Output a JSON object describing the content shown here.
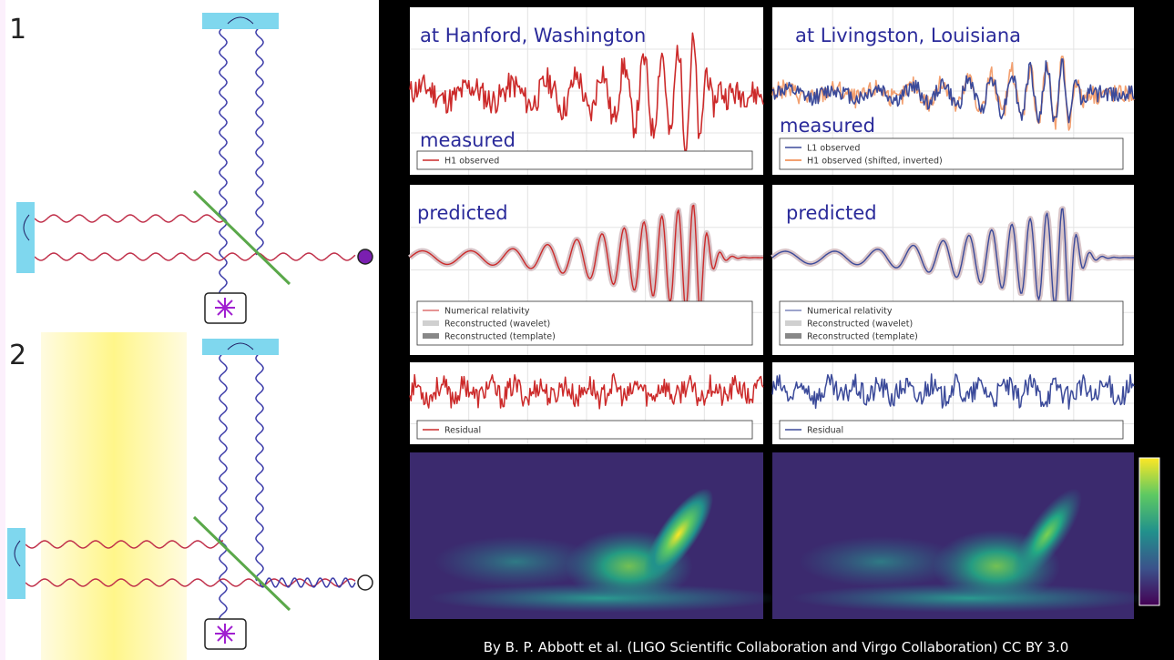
{
  "panel_labels": [
    "1",
    "2"
  ],
  "columns": [
    {
      "title": "at Hanford, Washington",
      "measured_label": "measured",
      "predicted_label": "predicted",
      "measured_legend": [
        "H1 observed"
      ],
      "predicted_legend": [
        "Numerical relativity",
        "Reconstructed (wavelet)",
        "Reconstructed (template)"
      ],
      "residual_legend": [
        "Residual"
      ]
    },
    {
      "title": "at Livingston, Louisiana",
      "measured_label": "measured",
      "predicted_label": "predicted",
      "measured_legend": [
        "L1 observed",
        "H1 observed (shifted, inverted)"
      ],
      "predicted_legend": [
        "Numerical relativity",
        "Reconstructed (wavelet)",
        "Reconstructed (template)"
      ],
      "residual_legend": [
        "Residual"
      ]
    }
  ],
  "credit": "By B. P. Abbott et al. (LIGO Scientific Collaboration and Virgo Collaboration) CC BY 3.0"
}
